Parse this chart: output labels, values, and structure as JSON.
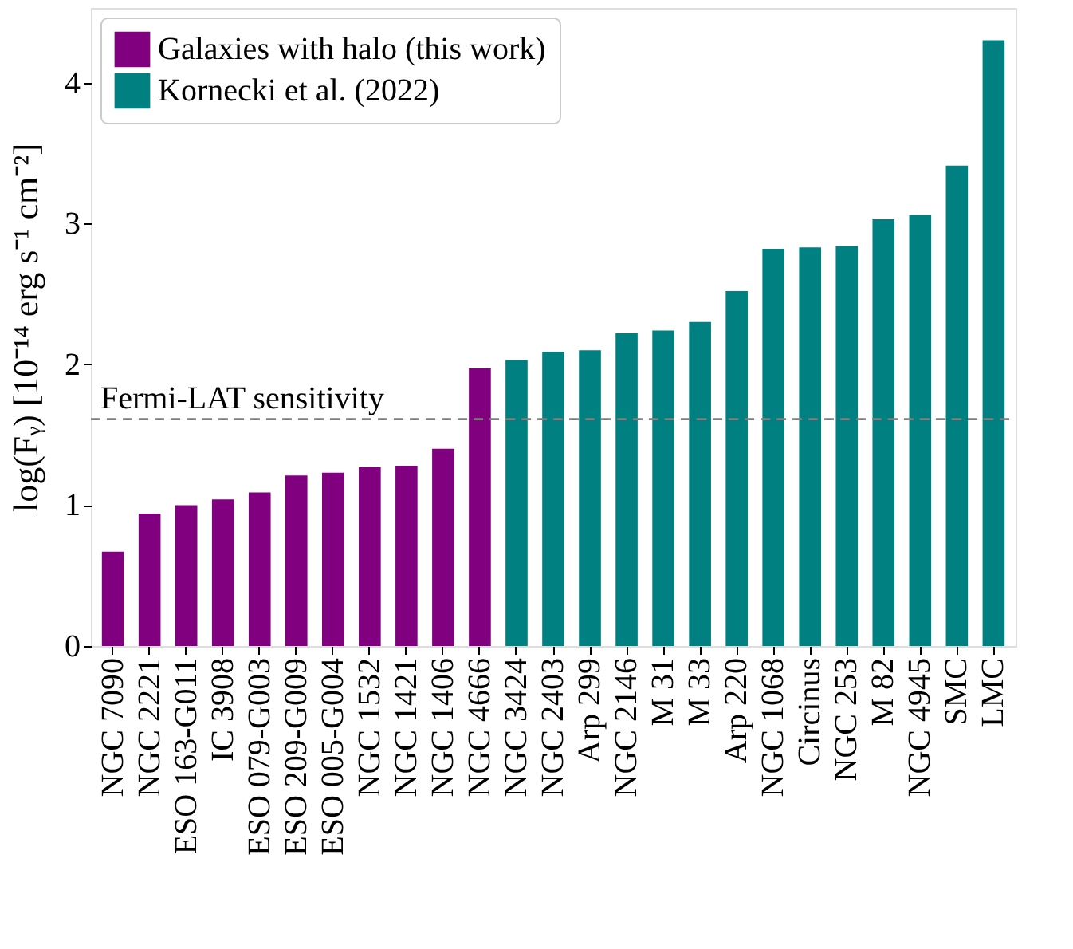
{
  "chart_data": {
    "type": "bar",
    "ylabel": "log(Fᵧ) [10⁻¹⁴ erg s⁻¹ cm⁻²]",
    "categories": [
      "NGC 7090",
      "NGC 2221",
      "ESO 163-G011",
      "IC 3908",
      "ESO 079-G003",
      "ESO 209-G009",
      "ESO 005-G004",
      "NGC 1532",
      "NGC 1421",
      "NGC 1406",
      "NGC 4666",
      "NGC 3424",
      "NGC 2403",
      "Arp 299",
      "NGC 2146",
      "M 31",
      "M 33",
      "Arp 220",
      "NGC 1068",
      "Circinus",
      "NGC 253",
      "M 82",
      "NGC 4945",
      "SMC",
      "LMC"
    ],
    "series": [
      {
        "name": "Galaxies with halo (this work)",
        "color": "#800080",
        "values": [
          0.67,
          0.94,
          1.0,
          1.04,
          1.09,
          1.21,
          1.23,
          1.27,
          1.28,
          1.4,
          1.97,
          null,
          null,
          null,
          null,
          null,
          null,
          null,
          null,
          null,
          null,
          null,
          null,
          null,
          null
        ]
      },
      {
        "name": "Kornecki et al. (2022)",
        "color": "#008080",
        "values": [
          null,
          null,
          null,
          null,
          null,
          null,
          null,
          null,
          null,
          null,
          null,
          2.03,
          2.09,
          2.1,
          2.22,
          2.24,
          2.3,
          2.52,
          2.82,
          2.83,
          2.84,
          3.03,
          3.06,
          3.41,
          4.3
        ]
      }
    ],
    "ylim": [
      0,
      4.53
    ],
    "yticks": [
      0,
      1,
      2,
      3,
      4
    ],
    "ref_lines": [
      {
        "axis": "y",
        "value": 1.61,
        "label": "Fermi-LAT sensitivity",
        "color": "#808080",
        "line_style": "dashed"
      }
    ],
    "legend": "top left",
    "grid": false
  }
}
